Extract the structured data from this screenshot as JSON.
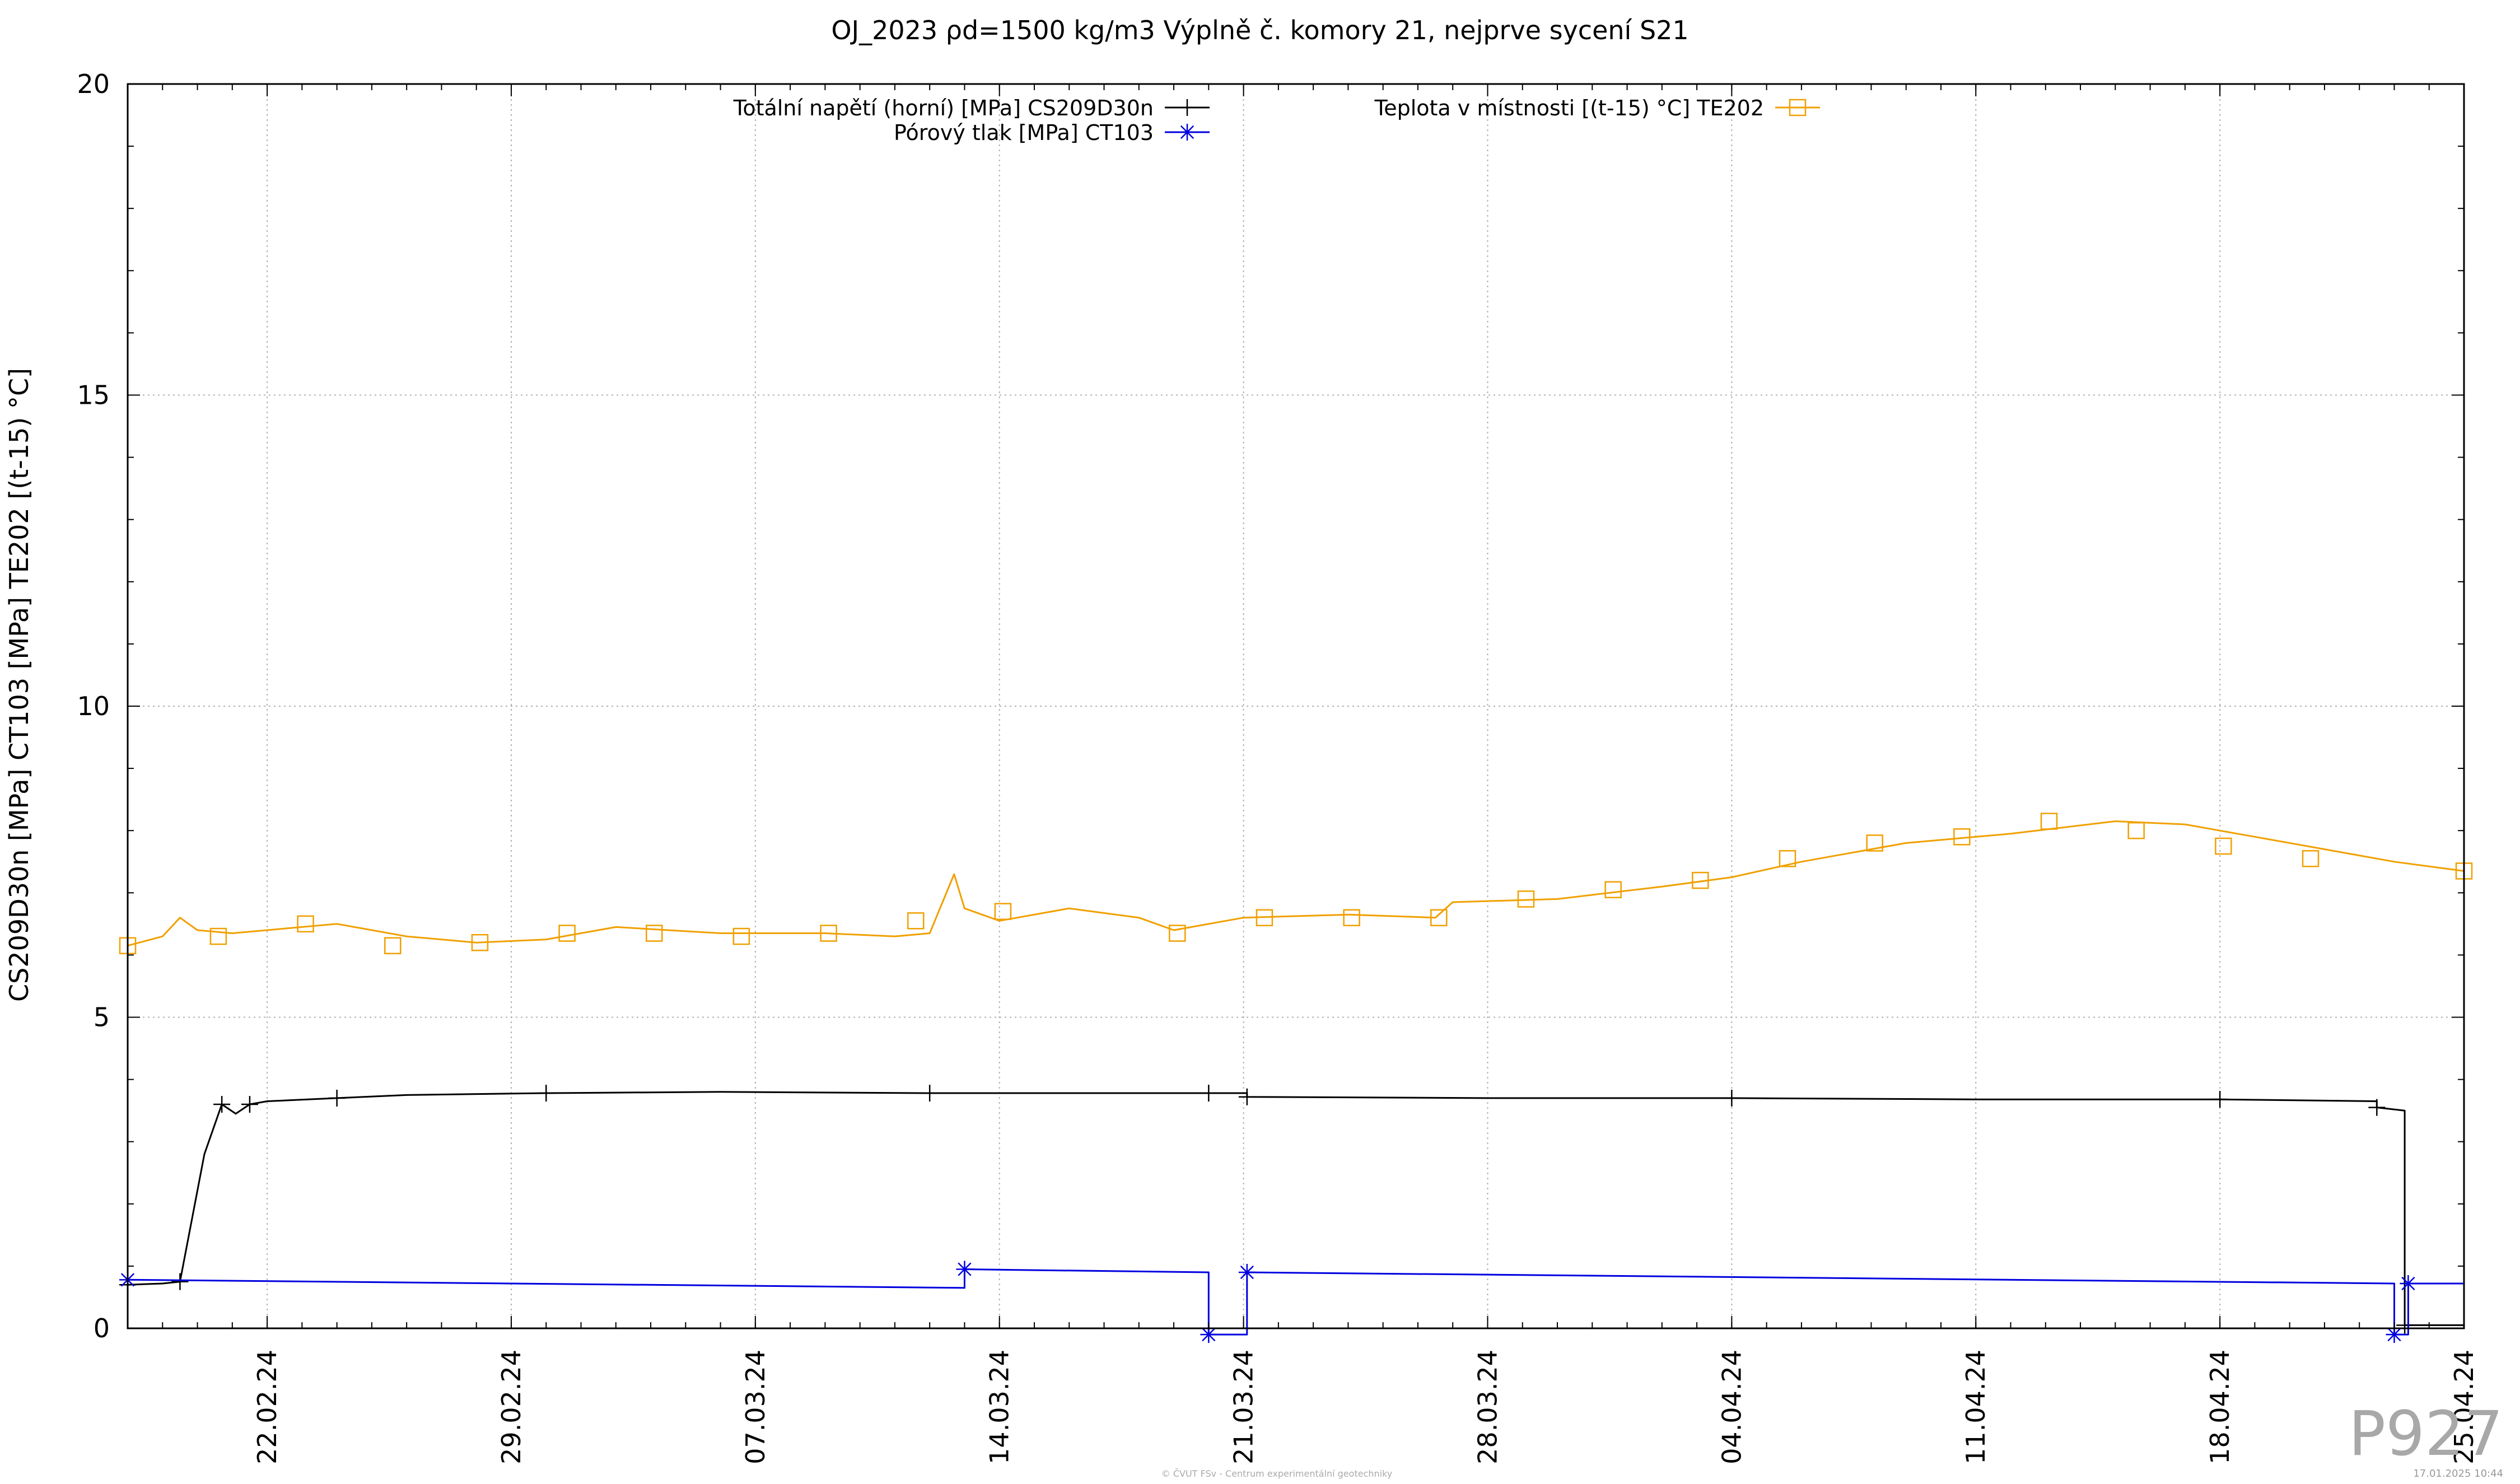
{
  "chart_data": {
    "type": "line",
    "title": "OJ_2023 ρd=1500 kg/m3 Výplně č. komory 21, nejprve sycení S21",
    "xlabel": "",
    "ylabel": "CS209D30n [MPa] CT103 [MPa] TE202 [(t-15) °C]",
    "ylim": [
      0,
      20
    ],
    "yticks": [
      "0",
      "5",
      "10",
      "15",
      "20"
    ],
    "xlim": [
      "2024-02-18",
      "2024-04-25"
    ],
    "xticks": [
      {
        "label": "22.02.24",
        "date": "2024-02-22"
      },
      {
        "label": "29.02.24",
        "date": "2024-02-29"
      },
      {
        "label": "07.03.24",
        "date": "2024-03-07"
      },
      {
        "label": "14.03.24",
        "date": "2024-03-14"
      },
      {
        "label": "21.03.24",
        "date": "2024-03-21"
      },
      {
        "label": "28.03.24",
        "date": "2024-03-28"
      },
      {
        "label": "04.04.24",
        "date": "2024-04-04"
      },
      {
        "label": "11.04.24",
        "date": "2024-04-11"
      },
      {
        "label": "18.04.24",
        "date": "2024-04-18"
      },
      {
        "label": "25.04.24",
        "date": "2024-04-25"
      }
    ],
    "grid": true,
    "legend_placement": "top",
    "series": [
      {
        "name": "Totální napětí (horní) [MPa] CS209D30n",
        "color": "#000000",
        "marker": "plus",
        "points": [
          [
            "2024-02-18",
            0.7
          ],
          [
            "2024-02-19",
            0.72
          ],
          [
            "2024-02-19.5",
            0.75
          ],
          [
            "2024-02-20.2",
            2.8
          ],
          [
            "2024-02-20.7",
            3.6
          ],
          [
            "2024-02-21.1",
            3.45
          ],
          [
            "2024-02-21.5",
            3.6
          ],
          [
            "2024-02-22",
            3.65
          ],
          [
            "2024-02-24",
            3.7
          ],
          [
            "2024-02-26",
            3.75
          ],
          [
            "2024-03-01",
            3.78
          ],
          [
            "2024-03-06",
            3.8
          ],
          [
            "2024-03-12",
            3.78
          ],
          [
            "2024-03-18",
            3.78
          ],
          [
            "2024-03-20",
            3.78
          ],
          [
            "2024-03-21.1",
            3.78
          ],
          [
            "2024-03-21.1",
            3.72
          ],
          [
            "2024-03-28",
            3.7
          ],
          [
            "2024-04-04",
            3.7
          ],
          [
            "2024-04-11",
            3.68
          ],
          [
            "2024-04-18",
            3.68
          ],
          [
            "2024-04-22.5",
            3.65
          ],
          [
            "2024-04-22.5",
            3.55
          ],
          [
            "2024-04-23.3",
            3.5
          ],
          [
            "2024-04-23.3",
            0.05
          ],
          [
            "2024-04-25",
            0.05
          ]
        ]
      },
      {
        "name": "Pórový tlak [MPa] CT103",
        "color": "#0000e0",
        "marker": "star",
        "points": [
          [
            "2024-02-18",
            0.78
          ],
          [
            "2024-03-13",
            0.65
          ],
          [
            "2024-03-13",
            0.95
          ],
          [
            "2024-03-20",
            0.9
          ],
          [
            "2024-03-20",
            -0.1
          ],
          [
            "2024-03-21.1",
            -0.1
          ],
          [
            "2024-03-21.1",
            0.9
          ],
          [
            "2024-04-23",
            0.72
          ],
          [
            "2024-04-23",
            -0.1
          ],
          [
            "2024-04-23.4",
            -0.1
          ],
          [
            "2024-04-23.4",
            0.72
          ],
          [
            "2024-04-25",
            0.72
          ]
        ]
      },
      {
        "name": "Teplota v místnosti [(t-15) °C] TE202",
        "color": "#f0a000",
        "marker": "square",
        "points": [
          [
            "2024-02-18",
            6.15
          ],
          [
            "2024-02-19",
            6.3
          ],
          [
            "2024-02-19.5",
            6.6
          ],
          [
            "2024-02-20",
            6.4
          ],
          [
            "2024-02-21",
            6.35
          ],
          [
            "2024-02-24",
            6.5
          ],
          [
            "2024-02-26",
            6.3
          ],
          [
            "2024-02-28",
            6.2
          ],
          [
            "2024-03-01",
            6.25
          ],
          [
            "2024-03-03",
            6.45
          ],
          [
            "2024-03-06",
            6.35
          ],
          [
            "2024-03-09",
            6.35
          ],
          [
            "2024-03-11",
            6.3
          ],
          [
            "2024-03-12",
            6.35
          ],
          [
            "2024-03-12.7",
            7.3
          ],
          [
            "2024-03-13",
            6.75
          ],
          [
            "2024-03-14",
            6.55
          ],
          [
            "2024-03-16",
            6.75
          ],
          [
            "2024-03-18",
            6.6
          ],
          [
            "2024-03-19",
            6.4
          ],
          [
            "2024-03-21",
            6.6
          ],
          [
            "2024-03-24",
            6.65
          ],
          [
            "2024-03-26.5",
            6.6
          ],
          [
            "2024-03-27",
            6.85
          ],
          [
            "2024-03-30",
            6.9
          ],
          [
            "2024-04-02",
            7.1
          ],
          [
            "2024-04-04",
            7.25
          ],
          [
            "2024-04-06",
            7.5
          ],
          [
            "2024-04-09",
            7.8
          ],
          [
            "2024-04-12",
            7.95
          ],
          [
            "2024-04-15",
            8.15
          ],
          [
            "2024-04-17",
            8.1
          ],
          [
            "2024-04-19",
            7.9
          ],
          [
            "2024-04-21",
            7.7
          ],
          [
            "2024-04-23",
            7.5
          ],
          [
            "2024-04-25",
            7.35
          ]
        ],
        "marker_points": [
          [
            "2024-02-18",
            6.15
          ],
          [
            "2024-02-20.6",
            6.3
          ],
          [
            "2024-02-23.1",
            6.5
          ],
          [
            "2024-02-25.6",
            6.15
          ],
          [
            "2024-02-28.1",
            6.2
          ],
          [
            "2024-03-01.6",
            6.35
          ],
          [
            "2024-03-04.1",
            6.35
          ],
          [
            "2024-03-06.6",
            6.3
          ],
          [
            "2024-03-09.1",
            6.35
          ],
          [
            "2024-03-11.6",
            6.55
          ],
          [
            "2024-03-14.1",
            6.7
          ],
          [
            "2024-03-19.1",
            6.35
          ],
          [
            "2024-03-21.6",
            6.6
          ],
          [
            "2024-03-24.1",
            6.6
          ],
          [
            "2024-03-26.6",
            6.6
          ],
          [
            "2024-03-29.1",
            6.9
          ],
          [
            "2024-03-31.6",
            7.05
          ],
          [
            "2024-04-03.1",
            7.2
          ],
          [
            "2024-04-05.6",
            7.55
          ],
          [
            "2024-04-08.1",
            7.8
          ],
          [
            "2024-04-10.6",
            7.9
          ],
          [
            "2024-04-13.1",
            8.15
          ],
          [
            "2024-04-15.6",
            8.0
          ],
          [
            "2024-04-18.1",
            7.75
          ],
          [
            "2024-04-20.6",
            7.55
          ],
          [
            "2024-04-25",
            7.35
          ]
        ]
      }
    ]
  },
  "footer": {
    "copyright": "© ČVUT FSv - Centrum experimentální geotechniky",
    "timestamp": "17.01.2025 10:44",
    "sheet_id": "P927"
  }
}
